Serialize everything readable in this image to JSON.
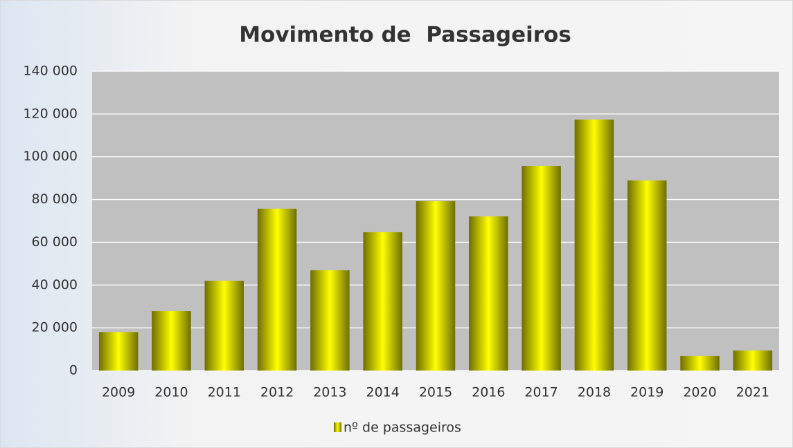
{
  "chart_data": {
    "type": "bar",
    "title": "Movimento de  Passageiros",
    "categories": [
      "2009",
      "2010",
      "2011",
      "2012",
      "2013",
      "2014",
      "2015",
      "2016",
      "2017",
      "2018",
      "2019",
      "2020",
      "2021"
    ],
    "series": [
      {
        "name": "nº de passageiros",
        "color": "#ffff00",
        "values": [
          18000,
          27800,
          42000,
          75700,
          46900,
          64700,
          79200,
          72100,
          95700,
          117400,
          88900,
          6800,
          9400
        ]
      }
    ],
    "ylim": [
      0,
      140000
    ],
    "yticks": [
      0,
      {
        "value": 20000,
        "label": "20 000"
      },
      {
        "value": 40000,
        "label": "40 000"
      },
      {
        "value": 60000,
        "label": "60 000"
      },
      {
        "value": 80000,
        "label": "80 000"
      },
      {
        "value": 100000,
        "label": "100 000"
      },
      {
        "value": 120000,
        "label": "120 000"
      },
      {
        "value": 140000,
        "label": "140 000"
      }
    ],
    "grid": true,
    "legend": "bottom"
  }
}
